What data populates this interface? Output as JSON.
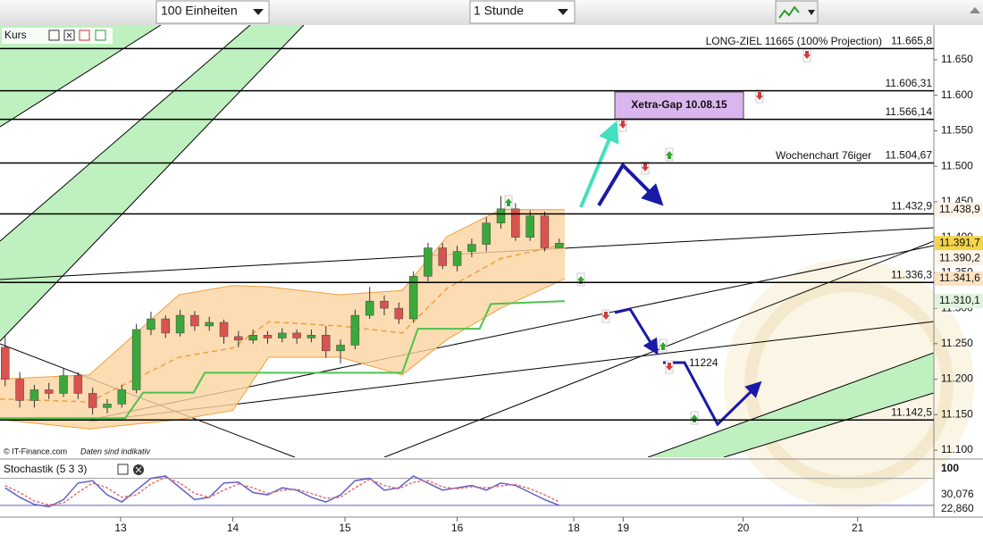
{
  "toolbar": {
    "units": "100 Einheiten",
    "interval": "1 Stunde"
  },
  "chart_data": [
    {
      "type": "candlestick",
      "title": "Kurs",
      "xlim": [
        11.924,
        20.25
      ],
      "xticks": [
        13,
        14,
        15,
        16,
        {
          "value": 17.04,
          "label": "18"
        },
        {
          "value": 17.48,
          "label": "19"
        },
        {
          "value": 18.55,
          "label": "20"
        },
        {
          "value": 19.57,
          "label": "21"
        }
      ],
      "ylim": [
        11090,
        11699
      ],
      "yticks": [
        {
          "value": 11650,
          "label": "11.650"
        },
        {
          "value": 11600,
          "label": "11.600"
        },
        {
          "value": 11550,
          "label": "11.550"
        },
        {
          "value": 11500,
          "label": "11.500"
        },
        {
          "value": 11450,
          "label": "11.450"
        },
        {
          "value": 11400,
          "label": "11.400"
        },
        {
          "value": 11350,
          "label": "11.350"
        },
        {
          "value": 11300,
          "label": "11.300"
        },
        {
          "value": 11250,
          "label": "11.250"
        },
        {
          "value": 11200,
          "label": "11.200"
        },
        {
          "value": 11150,
          "label": "11.150"
        },
        {
          "value": 11100,
          "label": "11.100"
        }
      ],
      "up_color": "#3aa83a",
      "down_color": "#d9534f",
      "x": [
        11.97,
        12.1,
        12.23,
        12.36,
        12.49,
        12.62,
        12.75,
        12.88,
        13.01,
        13.14,
        13.27,
        13.4,
        13.53,
        13.66,
        13.79,
        13.92,
        14.05,
        14.18,
        14.31,
        14.44,
        14.57,
        14.7,
        14.83,
        14.96,
        15.09,
        15.22,
        15.35,
        15.48,
        15.61,
        15.74,
        15.87,
        16,
        16.13,
        16.26,
        16.39,
        16.52,
        16.65,
        16.78,
        16.91
      ],
      "open": [
        11245,
        11200,
        11170,
        11185,
        11180,
        11205,
        11180,
        11160,
        11165,
        11185,
        11270,
        11285,
        11265,
        11290,
        11275,
        11280,
        11260,
        11255,
        11262,
        11258,
        11265,
        11258,
        11262,
        11240,
        11248,
        11290,
        11310,
        11300,
        11285,
        11345,
        11385,
        11360,
        11380,
        11390,
        11420,
        11440,
        11400,
        11430,
        11385
      ],
      "high": [
        11262,
        11210,
        11192,
        11195,
        11215,
        11210,
        11188,
        11172,
        11192,
        11278,
        11295,
        11290,
        11298,
        11296,
        11288,
        11284,
        11268,
        11270,
        11268,
        11272,
        11270,
        11270,
        11275,
        11256,
        11298,
        11330,
        11318,
        11308,
        11352,
        11392,
        11392,
        11388,
        11398,
        11428,
        11458,
        11448,
        11438,
        11436,
        11398
      ],
      "low": [
        11190,
        11160,
        11160,
        11172,
        11175,
        11172,
        11150,
        11152,
        11160,
        11180,
        11262,
        11258,
        11260,
        11268,
        11268,
        11250,
        11245,
        11250,
        11250,
        11252,
        11250,
        11252,
        11230,
        11222,
        11242,
        11285,
        11290,
        11278,
        11280,
        11338,
        11355,
        11352,
        11372,
        11380,
        11412,
        11395,
        11395,
        11380,
        11385
      ],
      "close": [
        11200,
        11170,
        11185,
        11180,
        11205,
        11180,
        11160,
        11165,
        11185,
        11270,
        11285,
        11265,
        11290,
        11275,
        11280,
        11260,
        11255,
        11262,
        11258,
        11265,
        11258,
        11262,
        11240,
        11248,
        11290,
        11310,
        11300,
        11285,
        11345,
        11385,
        11360,
        11380,
        11390,
        11420,
        11440,
        11400,
        11430,
        11385,
        11391.7
      ],
      "bollinger": {
        "color": "#f0a040",
        "fill": "#fbd3a0",
        "x": [
          11.92,
          12.72,
          13.52,
          14,
          14.32,
          14.95,
          15.51,
          15.91,
          16.39,
          16.96
        ],
        "upper": [
          11200,
          11206,
          11319,
          11332,
          11330,
          11319,
          11325,
          11401,
          11439,
          11438.9
        ],
        "middle": [
          11172,
          11168,
          11231,
          11244,
          11281,
          11275,
          11265,
          11328,
          11370,
          11390.2
        ],
        "lower": [
          11143,
          11130,
          11143,
          11156,
          11231,
          11231,
          11206,
          11256,
          11300,
          11341.6
        ]
      },
      "stop_line": {
        "color": "#4cc34c",
        "x": [
          11.92,
          13.04,
          13.2,
          13.65,
          13.75,
          15.51,
          15.65,
          16.2,
          16.3,
          16.96
        ],
        "values": [
          11145,
          11145,
          11181,
          11181,
          11209,
          11209,
          11271,
          11271,
          11306,
          11310.1
        ]
      },
      "levels": [
        {
          "value": 11665.8,
          "label": "11.665,8"
        },
        {
          "value": 11606.31,
          "label": "11.606,31"
        },
        {
          "value": 11566.14,
          "label": "11.566,14"
        },
        {
          "value": 11504.67,
          "label": "11.504,67"
        },
        {
          "value": 11432.9,
          "label": "11.432,9"
        },
        {
          "value": 11336.3,
          "label": "11.336,3"
        },
        {
          "value": 11142.5,
          "label": "11.142,5"
        }
      ],
      "price_markers": [
        {
          "value": 11438.9,
          "label": "11.438,9",
          "color": "#f0a040",
          "background": "#fdf3e6"
        },
        {
          "value": 11391.7,
          "label": "11.391,7",
          "color": "#000000",
          "background": "#f5d44a"
        },
        {
          "value": 11390.2,
          "label": "11.390,2",
          "color": "#e8902a",
          "background": "#fdf3e6"
        },
        {
          "value": 11341.6,
          "label": "11.341,6",
          "color": "#e8902a",
          "background": "#fde3c4"
        },
        {
          "value": 11310.1,
          "label": "11.310,1",
          "color": "#2f9e2f",
          "background": "#dff3df"
        }
      ],
      "annotations": {
        "long_target": "LONG-ZIEL 11665 (100% Projection)",
        "gap": "Xetra-Gap 10.08.15",
        "weekly": "Wochenchart 76iger",
        "level": "11224",
        "copyright": "© IT-Finance.com",
        "disclaimer": "Daten sind indikativ"
      }
    },
    {
      "type": "line",
      "title": "Stochastik (5 3 3)",
      "ylim": [
        0,
        100
      ],
      "yticks": [
        100
      ],
      "levels": [
        80
      ],
      "x": [
        11.97,
        12.1,
        12.23,
        12.36,
        12.49,
        12.62,
        12.75,
        12.88,
        13.01,
        13.14,
        13.27,
        13.4,
        13.53,
        13.66,
        13.79,
        13.92,
        14.05,
        14.18,
        14.31,
        14.44,
        14.57,
        14.7,
        14.83,
        14.96,
        15.09,
        15.22,
        15.35,
        15.48,
        15.61,
        15.74,
        15.87,
        16,
        16.13,
        16.26,
        16.39,
        16.52,
        16.65,
        16.78,
        16.91
      ],
      "series": [
        {
          "color": "#6060c8",
          "values": [
            60,
            40,
            25,
            20,
            35,
            70,
            75,
            45,
            30,
            55,
            80,
            85,
            60,
            35,
            40,
            70,
            72,
            50,
            45,
            60,
            55,
            40,
            30,
            45,
            75,
            80,
            55,
            60,
            85,
            70,
            55,
            60,
            65,
            55,
            70,
            65,
            50,
            35,
            22.86
          ],
          "marker": {
            "value": 22.86,
            "label": "22,860",
            "color": "#000000"
          }
        },
        {
          "color": "#e07070",
          "values": [
            65,
            50,
            32,
            24,
            28,
            50,
            70,
            60,
            40,
            45,
            68,
            82,
            70,
            48,
            40,
            55,
            68,
            60,
            48,
            55,
            57,
            48,
            38,
            40,
            60,
            78,
            65,
            58,
            72,
            75,
            62,
            58,
            62,
            60,
            64,
            67,
            58,
            45,
            30.076
          ],
          "marker": {
            "value": 30.076,
            "label": "30,076",
            "color": "#e07070"
          }
        }
      ]
    }
  ]
}
